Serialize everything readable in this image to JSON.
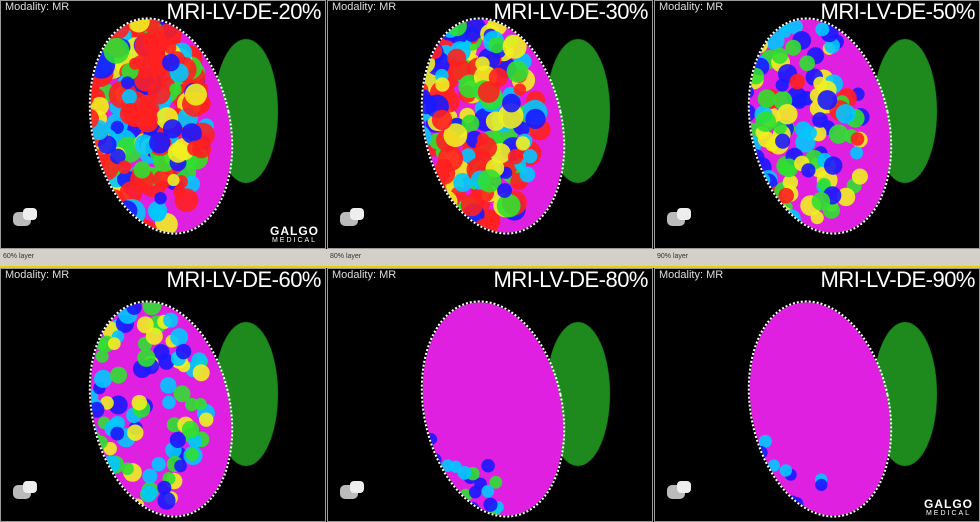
{
  "panels": [
    {
      "modality": "Modality: MR",
      "title": "MRI-LV-DE-20%"
    },
    {
      "modality": "Modality: MR",
      "title": "MRI-LV-DE-30%"
    },
    {
      "modality": "Modality: MR",
      "title": "MRI-LV-DE-50%"
    },
    {
      "modality": "Modality: MR",
      "title": "MRI-LV-DE-60%"
    },
    {
      "modality": "Modality: MR",
      "title": "MRI-LV-DE-80%"
    },
    {
      "modality": "Modality: MR",
      "title": "MRI-LV-DE-90%"
    }
  ],
  "layer_labels": [
    "60% layer",
    "80% layer",
    "90% layer"
  ],
  "logo": {
    "name": "GALGO",
    "sub": "MEDICAL"
  }
}
